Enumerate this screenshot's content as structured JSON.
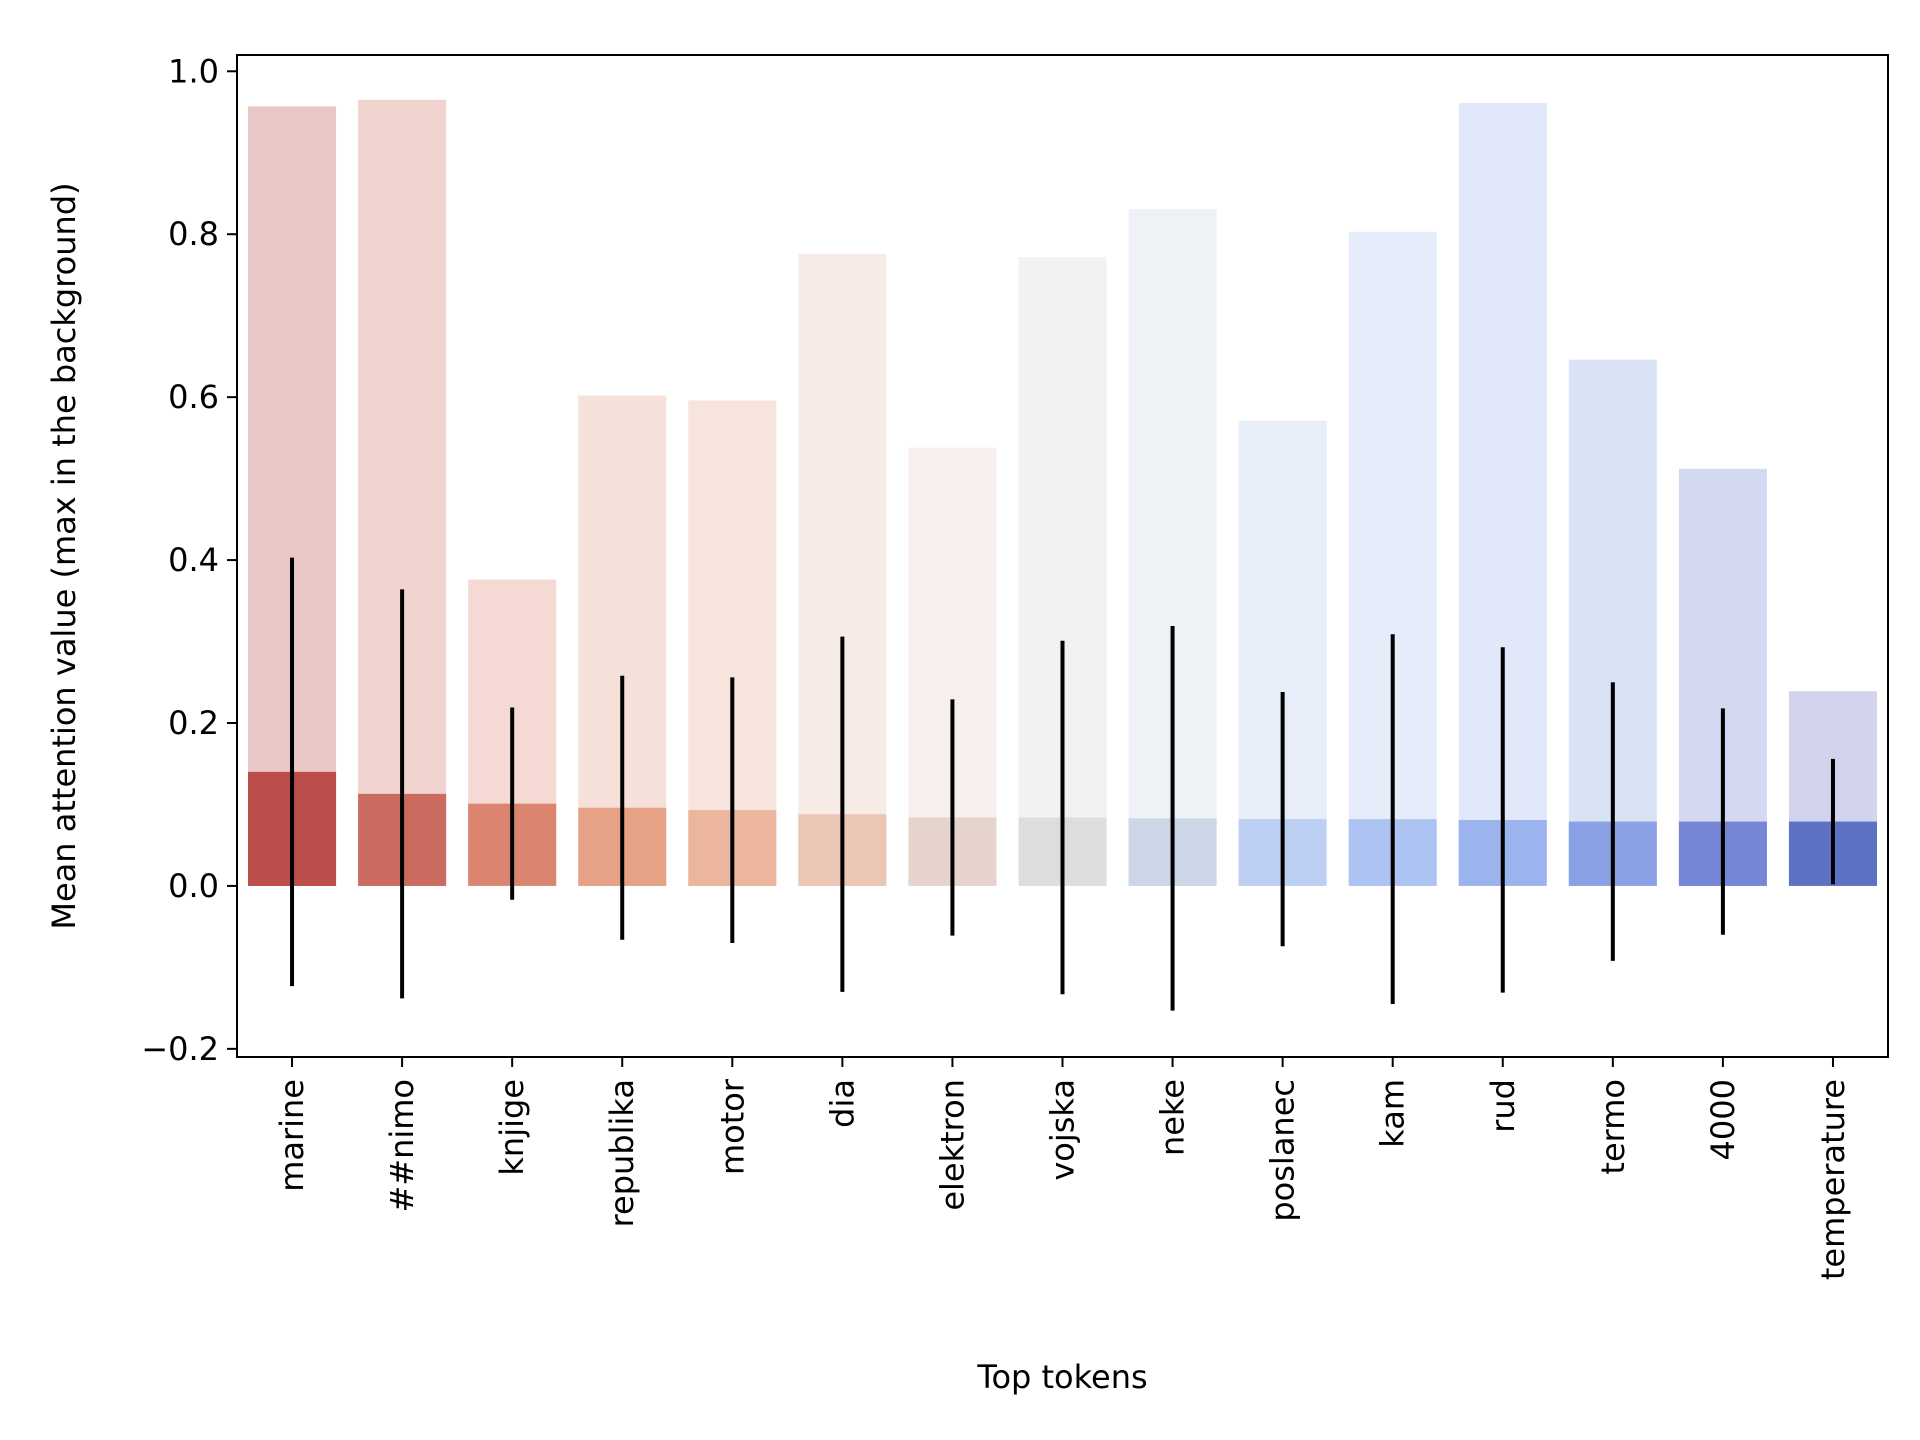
{
  "chart_data": {
    "type": "bar",
    "xlabel": "Top tokens",
    "ylabel": "Mean attention value (max in the background)",
    "ylim": [
      -0.21,
      1.02
    ],
    "yticks": [
      -0.2,
      0.0,
      0.2,
      0.4,
      0.6,
      0.8,
      1.0
    ],
    "ytick_labels": [
      "−0.2",
      "0.0",
      "0.2",
      "0.4",
      "0.6",
      "0.8",
      "1.0"
    ],
    "grid": false,
    "categories": [
      "marine",
      "##nimo",
      "knjige",
      "republika",
      "motor",
      "dia",
      "elektron",
      "vojska",
      "neke",
      "poslanec",
      "kam",
      "rud",
      "termo",
      "4000",
      "temperature"
    ],
    "series": [
      {
        "values": [
          0.957,
          0.965,
          0.376,
          0.602,
          0.596,
          0.776,
          0.538,
          0.772,
          0.831,
          0.571,
          0.803,
          0.961,
          0.646,
          0.512,
          0.239
        ],
        "colors": [
          "#e8c7c6",
          "#f1d3cf",
          "#f4d9d4",
          "#f6e1da",
          "#f6e4dd",
          "#f6ebe5",
          "#f6efeb",
          "#f2f2f2",
          "#eef2f7",
          "#e7eefa",
          "#e6ecfa",
          "#e1e8f9",
          "#dae3f5",
          "#d4d9f2",
          "#d1d4ec"
        ]
      },
      {
        "values": [
          0.14,
          0.113,
          0.101,
          0.096,
          0.093,
          0.088,
          0.084,
          0.084,
          0.083,
          0.082,
          0.082,
          0.081,
          0.079,
          0.079,
          0.079
        ],
        "errors": [
          0.263,
          0.251,
          0.118,
          0.162,
          0.163,
          0.218,
          0.145,
          0.217,
          0.236,
          0.156,
          0.227,
          0.212,
          0.171,
          0.139,
          0.077
        ],
        "colors": [
          "#bb4d4b",
          "#cb6b60",
          "#db8570",
          "#e6a186",
          "#ebb59e",
          "#ecc6b5",
          "#e6d3cb",
          "#dddedc",
          "#ccd6e7",
          "#bdcff3",
          "#adc3f3",
          "#9cb4ed",
          "#8aa1e6",
          "#7686d6",
          "#5e72c4"
        ]
      }
    ]
  }
}
